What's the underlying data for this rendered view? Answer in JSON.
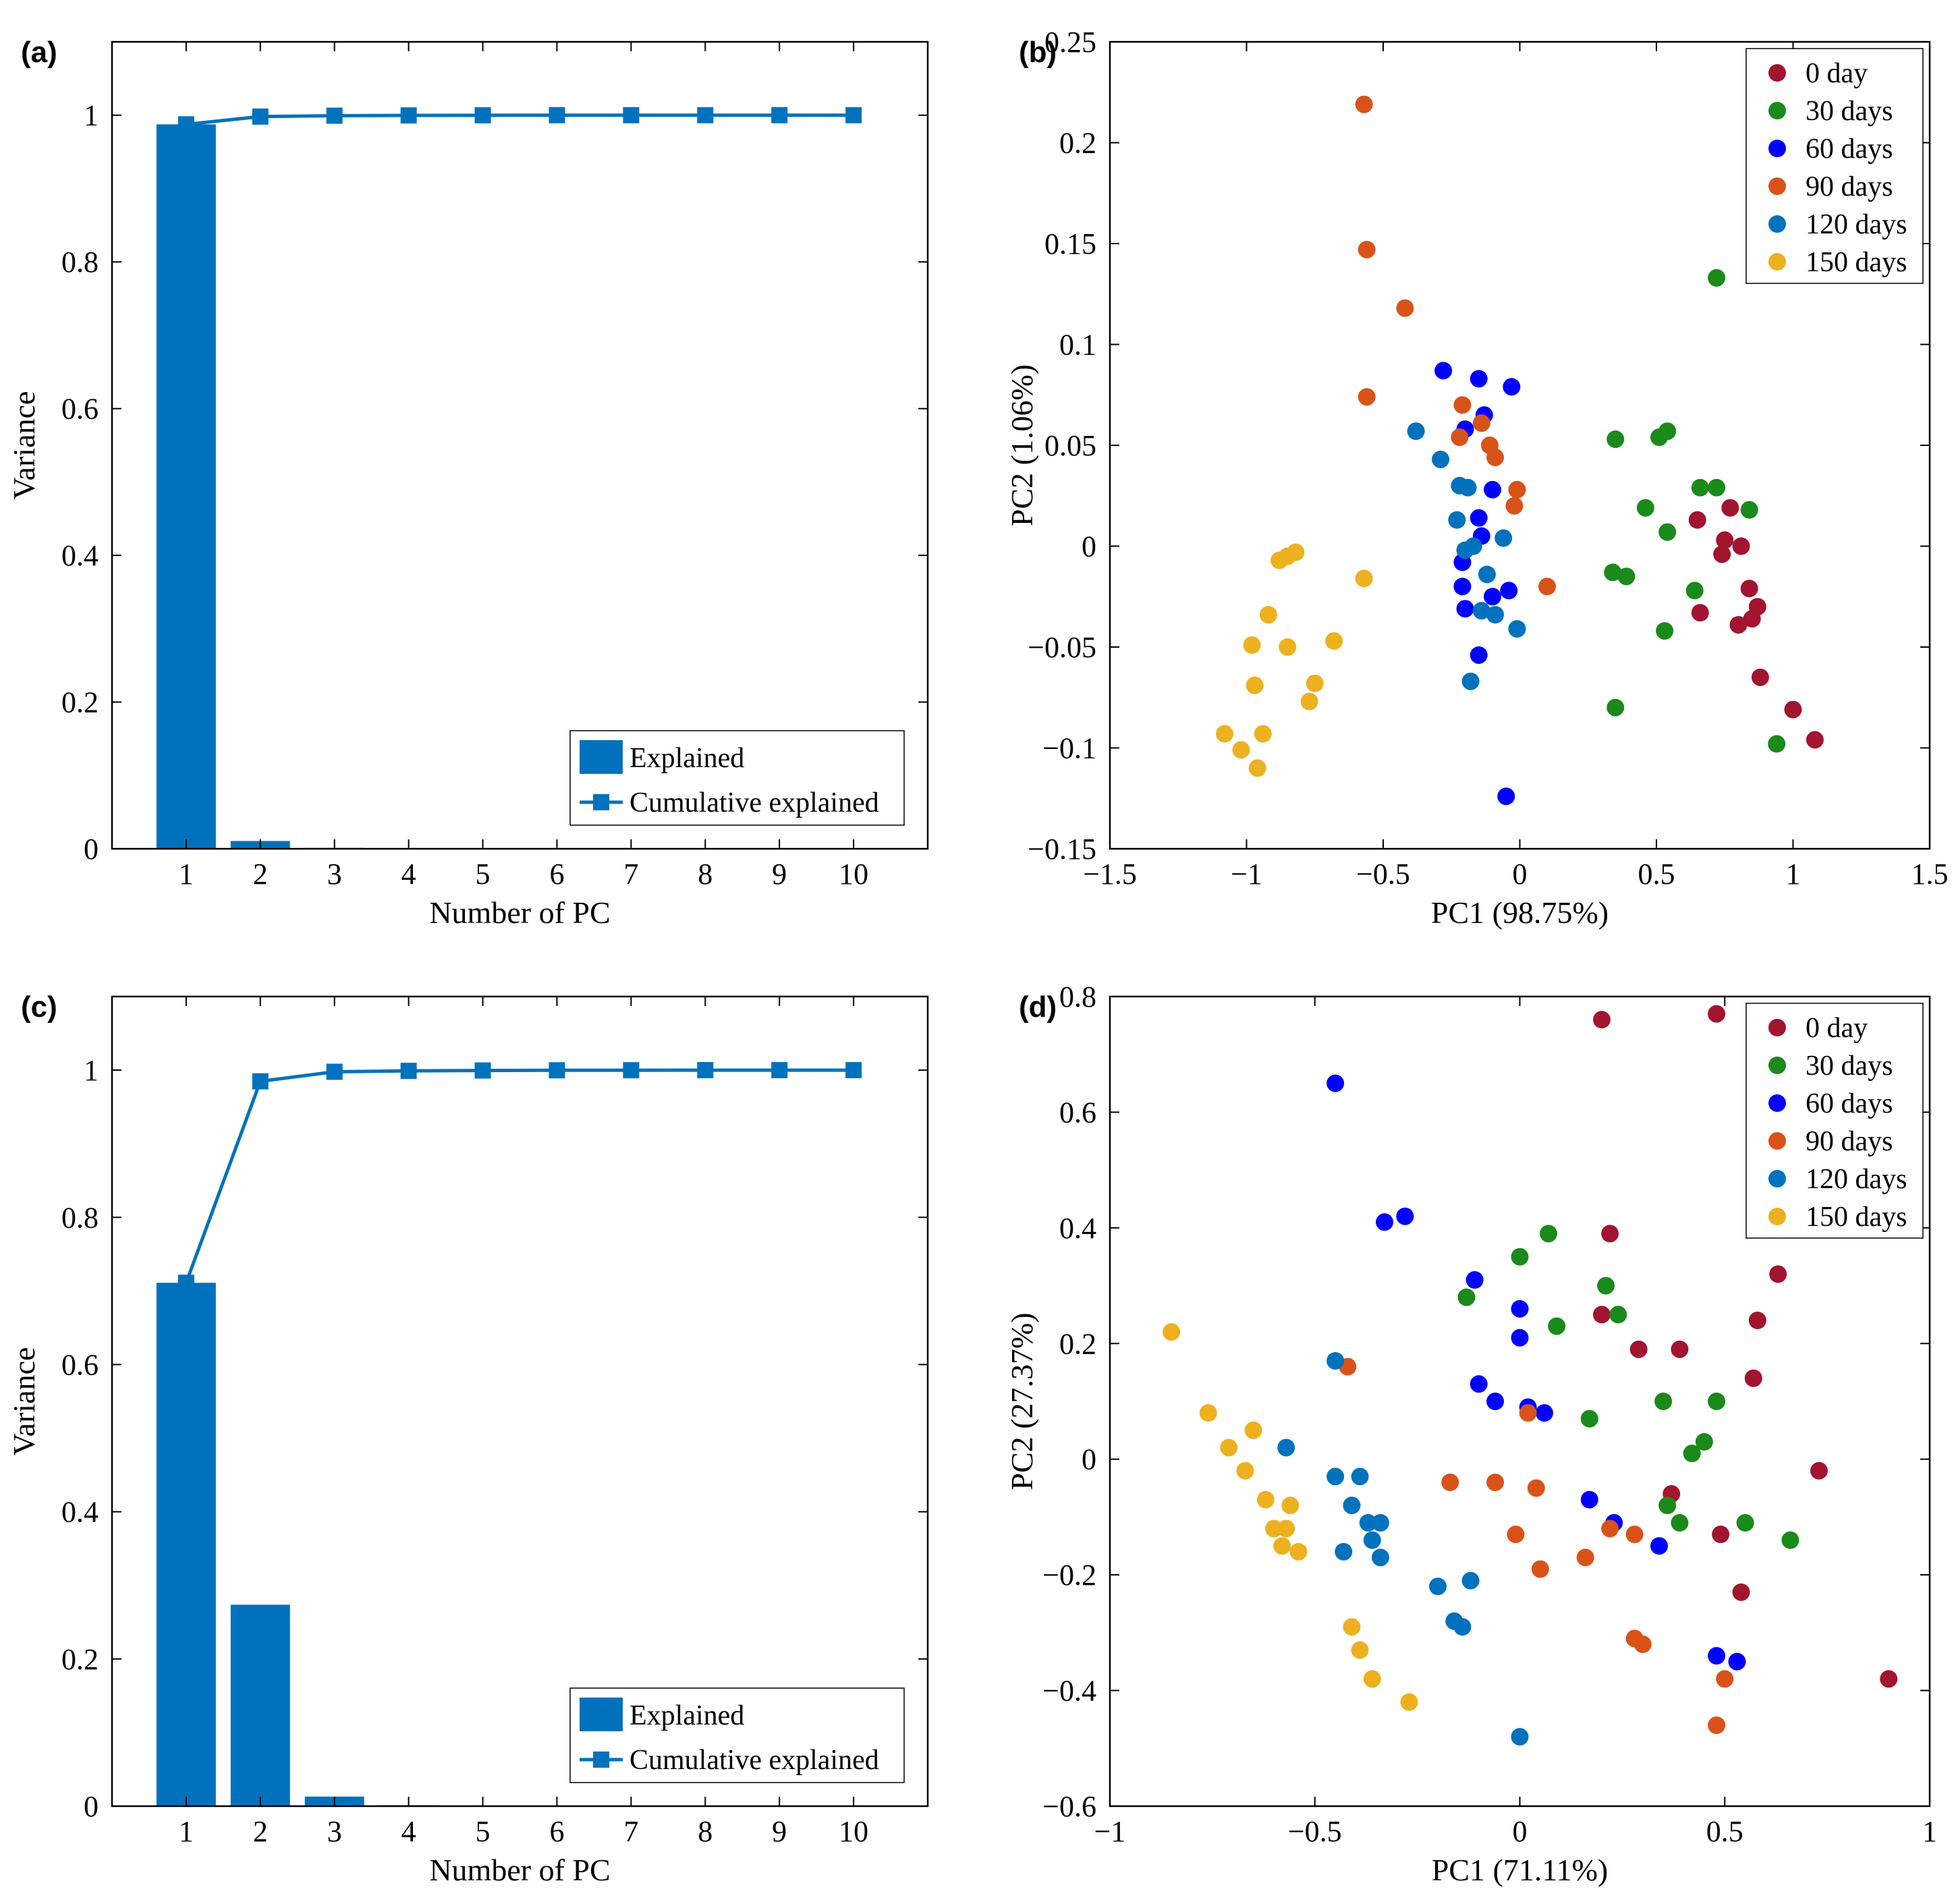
{
  "colors": {
    "explained": "#0072bd",
    "day0": "#a2142f",
    "day30": "#1a8a1a",
    "day60": "#0000ff",
    "day90": "#d95319",
    "day120": "#0072bd",
    "day150": "#edb120"
  },
  "chart_data": [
    {
      "id": "a",
      "panel_label": "(a)",
      "type": "bar",
      "xlabel": "Number of PC",
      "ylabel": "Variance",
      "categories": [
        "1",
        "2",
        "3",
        "4",
        "5",
        "6",
        "7",
        "8",
        "9",
        "10"
      ],
      "series": [
        {
          "name": "Explained",
          "kind": "bar",
          "values": [
            0.9875,
            0.0106,
            0.0012,
            0.0004,
            0.0002,
            0.0001,
            0.0,
            0.0,
            0.0,
            0.0
          ]
        },
        {
          "name": "Cumulative explained",
          "kind": "line",
          "values": [
            0.9875,
            0.9981,
            0.9993,
            0.9997,
            0.9999,
            1.0,
            1.0,
            1.0,
            1.0,
            1.0
          ]
        }
      ],
      "ylim": [
        0,
        1.1
      ],
      "yticks": [
        "0",
        "0.2",
        "0.4",
        "0.6",
        "0.8",
        "1"
      ],
      "legend": [
        "Explained",
        "Cumulative explained"
      ],
      "legend_position": "bottom-right"
    },
    {
      "id": "b",
      "panel_label": "(b)",
      "type": "scatter",
      "xlabel": "PC1 (98.75%)",
      "ylabel": "PC2 (1.06%)",
      "xlim": [
        -1.5,
        1.5
      ],
      "ylim": [
        -0.15,
        0.25
      ],
      "xticks": [
        "−1.5",
        "−1",
        "−0.5",
        "0",
        "0.5",
        "1",
        "1.5"
      ],
      "yticks": [
        "−0.15",
        "−0.1",
        "−0.05",
        "0",
        "0.05",
        "0.1",
        "0.15",
        "0.2",
        "0.25"
      ],
      "legend_position": "top-right",
      "series": [
        {
          "name": "0 day",
          "color_key": "day0",
          "points": [
            [
              0.65,
              0.013
            ],
            [
              0.77,
              0.019
            ],
            [
              0.75,
              0.003
            ],
            [
              0.81,
              0.0
            ],
            [
              0.74,
              -0.004
            ],
            [
              0.84,
              -0.021
            ],
            [
              0.66,
              -0.033
            ],
            [
              0.87,
              -0.03
            ],
            [
              0.85,
              -0.036
            ],
            [
              0.8,
              -0.039
            ],
            [
              0.88,
              -0.065
            ],
            [
              1.0,
              -0.081
            ],
            [
              1.08,
              -0.096
            ]
          ]
        },
        {
          "name": "30 days",
          "color_key": "day30",
          "points": [
            [
              0.72,
              0.133
            ],
            [
              0.35,
              0.053
            ],
            [
              0.51,
              0.054
            ],
            [
              0.54,
              0.057
            ],
            [
              0.66,
              0.029
            ],
            [
              0.72,
              0.029
            ],
            [
              0.46,
              0.019
            ],
            [
              0.84,
              0.018
            ],
            [
              0.54,
              0.007
            ],
            [
              0.34,
              -0.013
            ],
            [
              0.39,
              -0.015
            ],
            [
              0.64,
              -0.022
            ],
            [
              0.53,
              -0.042
            ],
            [
              0.35,
              -0.08
            ],
            [
              0.94,
              -0.098
            ]
          ]
        },
        {
          "name": "60 days",
          "color_key": "day60",
          "points": [
            [
              -0.28,
              0.087
            ],
            [
              -0.15,
              0.083
            ],
            [
              -0.03,
              0.079
            ],
            [
              -0.13,
              0.065
            ],
            [
              -0.2,
              0.058
            ],
            [
              -0.1,
              0.028
            ],
            [
              -0.15,
              0.014
            ],
            [
              -0.14,
              0.005
            ],
            [
              -0.21,
              -0.008
            ],
            [
              -0.21,
              -0.02
            ],
            [
              -0.1,
              -0.025
            ],
            [
              -0.04,
              -0.022
            ],
            [
              -0.2,
              -0.031
            ],
            [
              -0.15,
              -0.054
            ],
            [
              -0.05,
              -0.124
            ]
          ]
        },
        {
          "name": "90 days",
          "color_key": "day90",
          "points": [
            [
              -0.57,
              0.219
            ],
            [
              -0.56,
              0.147
            ],
            [
              -0.42,
              0.118
            ],
            [
              -0.56,
              0.074
            ],
            [
              -0.21,
              0.07
            ],
            [
              -0.14,
              0.061
            ],
            [
              -0.22,
              0.054
            ],
            [
              -0.11,
              0.05
            ],
            [
              -0.09,
              0.044
            ],
            [
              -0.01,
              0.028
            ],
            [
              -0.02,
              0.02
            ],
            [
              0.1,
              -0.02
            ]
          ]
        },
        {
          "name": "120 days",
          "color_key": "day120",
          "points": [
            [
              -0.38,
              0.057
            ],
            [
              -0.29,
              0.043
            ],
            [
              -0.22,
              0.03
            ],
            [
              -0.19,
              0.029
            ],
            [
              -0.23,
              0.013
            ],
            [
              -0.06,
              0.004
            ],
            [
              -0.2,
              -0.002
            ],
            [
              -0.17,
              0.0
            ],
            [
              -0.12,
              -0.014
            ],
            [
              -0.14,
              -0.032
            ],
            [
              -0.09,
              -0.034
            ],
            [
              -0.01,
              -0.041
            ],
            [
              -0.18,
              -0.067
            ]
          ]
        },
        {
          "name": "150 days",
          "color_key": "day150",
          "points": [
            [
              -0.82,
              -0.003
            ],
            [
              -0.85,
              -0.005
            ],
            [
              -0.88,
              -0.007
            ],
            [
              -0.57,
              -0.016
            ],
            [
              -0.92,
              -0.034
            ],
            [
              -0.68,
              -0.047
            ],
            [
              -0.98,
              -0.049
            ],
            [
              -0.85,
              -0.05
            ],
            [
              -0.75,
              -0.068
            ],
            [
              -0.97,
              -0.069
            ],
            [
              -0.77,
              -0.077
            ],
            [
              -1.08,
              -0.093
            ],
            [
              -0.94,
              -0.093
            ],
            [
              -1.02,
              -0.101
            ],
            [
              -0.96,
              -0.11
            ]
          ]
        }
      ]
    },
    {
      "id": "c",
      "panel_label": "(c)",
      "type": "bar",
      "xlabel": "Number of PC",
      "ylabel": "Variance",
      "categories": [
        "1",
        "2",
        "3",
        "4",
        "5",
        "6",
        "7",
        "8",
        "9",
        "10"
      ],
      "series": [
        {
          "name": "Explained",
          "kind": "bar",
          "values": [
            0.7111,
            0.2737,
            0.013,
            0.0012,
            0.0005,
            0.0003,
            0.0001,
            0.0001,
            0.0,
            0.0
          ]
        },
        {
          "name": "Cumulative explained",
          "kind": "line",
          "values": [
            0.7111,
            0.9848,
            0.9978,
            0.999,
            0.9995,
            0.9998,
            0.9999,
            1.0,
            1.0,
            1.0
          ]
        }
      ],
      "ylim": [
        0,
        1.1
      ],
      "yticks": [
        "0",
        "0.2",
        "0.4",
        "0.6",
        "0.8",
        "1"
      ],
      "legend": [
        "Explained",
        "Cumulative explained"
      ],
      "legend_position": "bottom-right"
    },
    {
      "id": "d",
      "panel_label": "(d)",
      "type": "scatter",
      "xlabel": "PC1 (71.11%)",
      "ylabel": "PC2 (27.37%)",
      "xlim": [
        -1,
        1
      ],
      "ylim": [
        -0.6,
        0.8
      ],
      "xticks": [
        "−1",
        "−0.5",
        "0",
        "0.5",
        "1"
      ],
      "yticks": [
        "−0.6",
        "−0.4",
        "−0.2",
        "0",
        "0.2",
        "0.4",
        "0.6",
        "0.8"
      ],
      "legend_position": "top-right",
      "series": [
        {
          "name": "0 day",
          "color_key": "day0",
          "points": [
            [
              0.2,
              0.76
            ],
            [
              0.48,
              0.77
            ],
            [
              0.22,
              0.39
            ],
            [
              0.63,
              0.32
            ],
            [
              0.2,
              0.25
            ],
            [
              0.58,
              0.24
            ],
            [
              0.29,
              0.19
            ],
            [
              0.39,
              0.19
            ],
            [
              0.57,
              0.14
            ],
            [
              0.73,
              -0.02
            ],
            [
              0.37,
              -0.06
            ],
            [
              0.49,
              -0.13
            ],
            [
              0.54,
              -0.23
            ],
            [
              0.9,
              -0.38
            ]
          ]
        },
        {
          "name": "30 days",
          "color_key": "day30",
          "points": [
            [
              0.07,
              0.39
            ],
            [
              0.0,
              0.35
            ],
            [
              -0.13,
              0.28
            ],
            [
              0.21,
              0.3
            ],
            [
              0.24,
              0.25
            ],
            [
              0.09,
              0.23
            ],
            [
              0.35,
              0.1
            ],
            [
              0.48,
              0.1
            ],
            [
              0.17,
              0.07
            ],
            [
              0.45,
              0.03
            ],
            [
              0.42,
              0.01
            ],
            [
              0.36,
              -0.08
            ],
            [
              0.39,
              -0.11
            ],
            [
              0.55,
              -0.11
            ],
            [
              0.66,
              -0.14
            ]
          ]
        },
        {
          "name": "60 days",
          "color_key": "day60",
          "points": [
            [
              -0.45,
              0.65
            ],
            [
              -0.33,
              0.41
            ],
            [
              -0.28,
              0.42
            ],
            [
              -0.11,
              0.31
            ],
            [
              0.0,
              0.26
            ],
            [
              0.0,
              0.21
            ],
            [
              -0.1,
              0.13
            ],
            [
              -0.06,
              0.1
            ],
            [
              0.02,
              0.09
            ],
            [
              0.06,
              0.08
            ],
            [
              0.17,
              -0.07
            ],
            [
              0.23,
              -0.11
            ],
            [
              0.34,
              -0.15
            ],
            [
              0.48,
              -0.34
            ],
            [
              0.53,
              -0.35
            ]
          ]
        },
        {
          "name": "90 days",
          "color_key": "day90",
          "points": [
            [
              -0.42,
              0.16
            ],
            [
              0.02,
              0.08
            ],
            [
              -0.17,
              -0.04
            ],
            [
              -0.06,
              -0.04
            ],
            [
              0.04,
              -0.05
            ],
            [
              -0.01,
              -0.13
            ],
            [
              0.22,
              -0.12
            ],
            [
              0.28,
              -0.13
            ],
            [
              0.05,
              -0.19
            ],
            [
              0.16,
              -0.17
            ],
            [
              0.28,
              -0.31
            ],
            [
              0.3,
              -0.32
            ],
            [
              0.5,
              -0.38
            ],
            [
              0.48,
              -0.46
            ]
          ]
        },
        {
          "name": "120 days",
          "color_key": "day120",
          "points": [
            [
              -0.45,
              0.17
            ],
            [
              -0.57,
              0.02
            ],
            [
              -0.45,
              -0.03
            ],
            [
              -0.39,
              -0.03
            ],
            [
              -0.41,
              -0.08
            ],
            [
              -0.37,
              -0.11
            ],
            [
              -0.34,
              -0.11
            ],
            [
              -0.36,
              -0.14
            ],
            [
              -0.43,
              -0.16
            ],
            [
              -0.34,
              -0.17
            ],
            [
              -0.2,
              -0.22
            ],
            [
              -0.12,
              -0.21
            ],
            [
              -0.16,
              -0.28
            ],
            [
              -0.14,
              -0.29
            ],
            [
              0.0,
              -0.48
            ]
          ]
        },
        {
          "name": "150 days",
          "color_key": "day150",
          "points": [
            [
              -0.85,
              0.22
            ],
            [
              -0.76,
              0.08
            ],
            [
              -0.65,
              0.05
            ],
            [
              -0.71,
              0.02
            ],
            [
              -0.67,
              -0.02
            ],
            [
              -0.62,
              -0.07
            ],
            [
              -0.56,
              -0.08
            ],
            [
              -0.6,
              -0.12
            ],
            [
              -0.57,
              -0.12
            ],
            [
              -0.58,
              -0.15
            ],
            [
              -0.54,
              -0.16
            ],
            [
              -0.41,
              -0.29
            ],
            [
              -0.39,
              -0.33
            ],
            [
              -0.36,
              -0.38
            ],
            [
              -0.27,
              -0.42
            ]
          ]
        }
      ]
    }
  ]
}
